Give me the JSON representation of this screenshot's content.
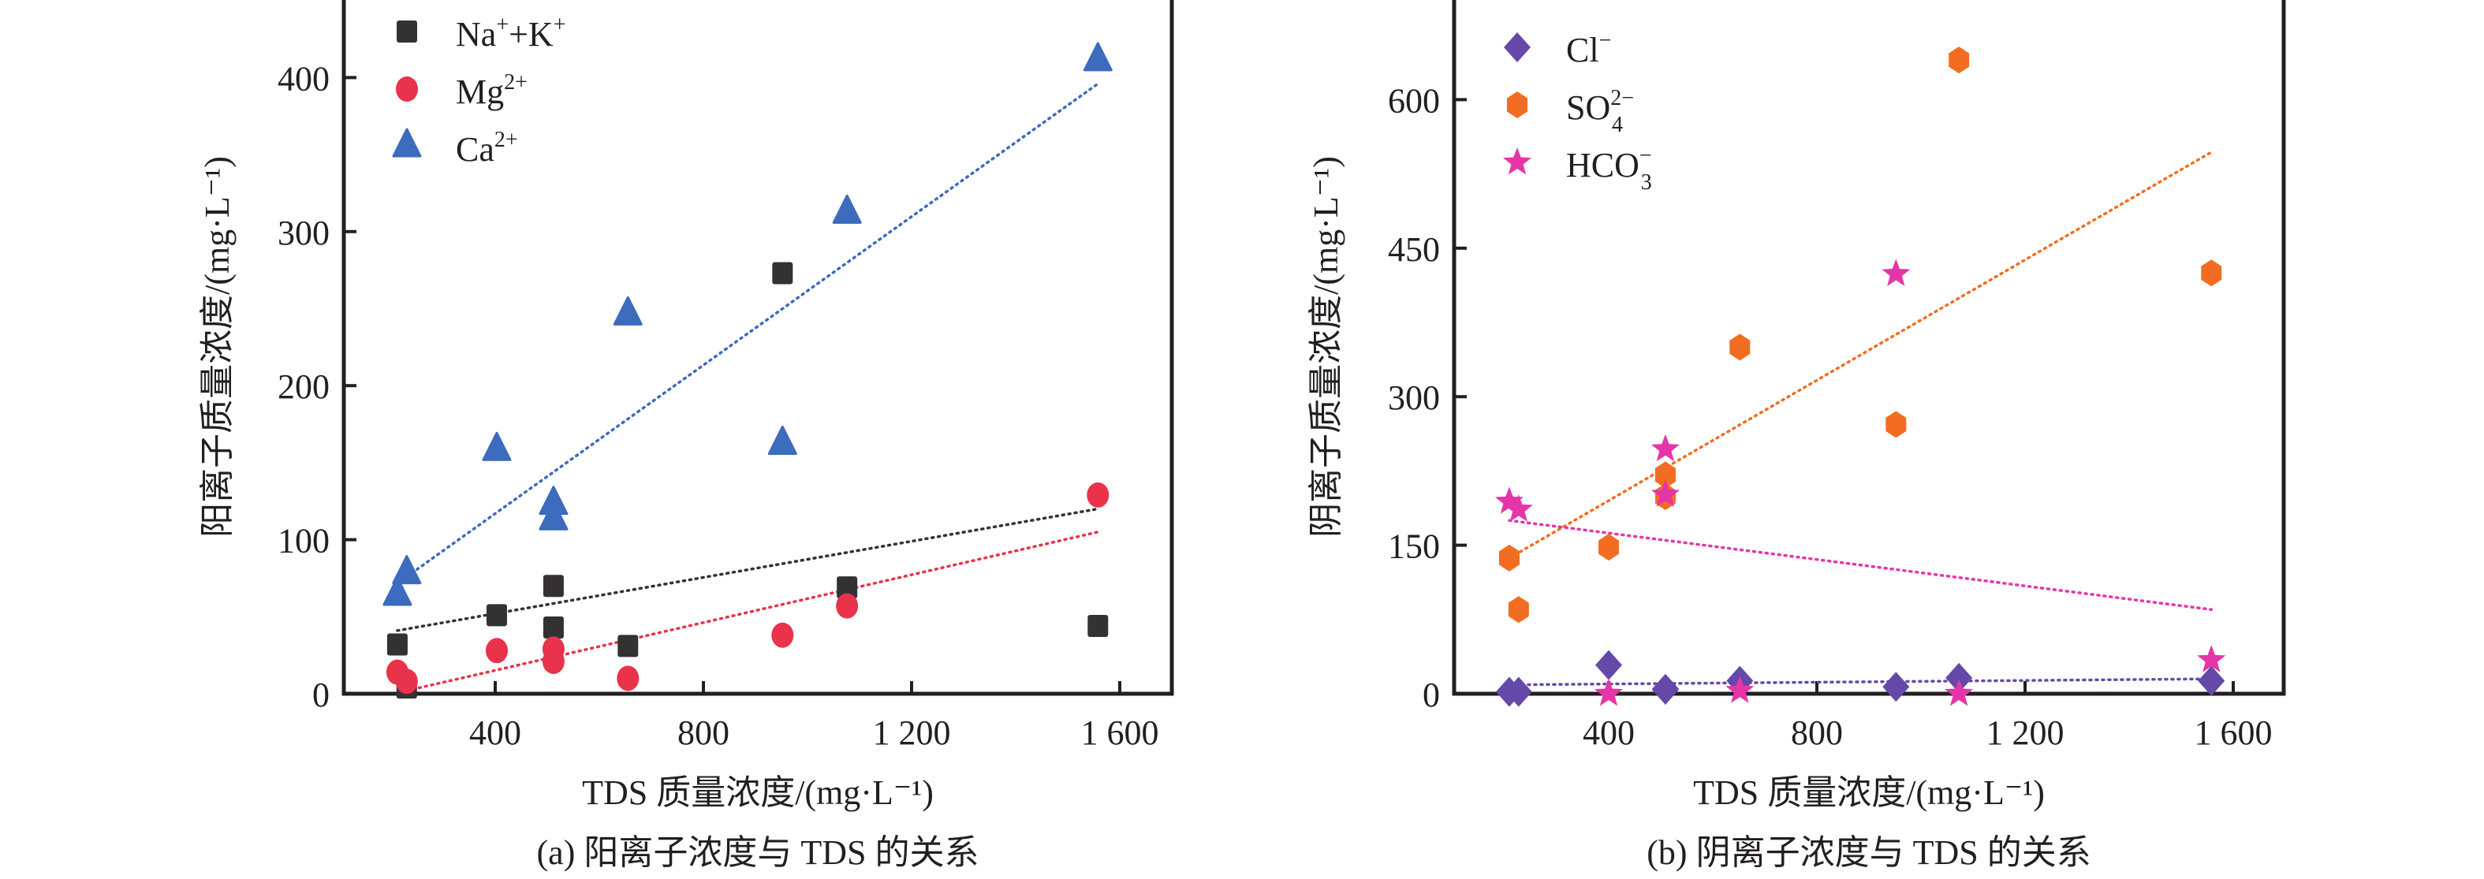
{
  "chart_data": [
    {
      "type": "scatter",
      "panel": "a",
      "caption": "(a) 阳离子浓度与 TDS 的关系",
      "xlabel": "TDS 质量浓度/(mg·L⁻¹)",
      "ylabel": "阳离子质量浓度/(mg·L⁻¹)",
      "xlim": [
        150,
        1700
      ],
      "ylim": [
        0,
        450
      ],
      "xticks": [
        400,
        800,
        1200,
        1600
      ],
      "xtick_labels": [
        "400",
        "800",
        "1 200",
        "1 600"
      ],
      "yticks": [
        0,
        100,
        200,
        300,
        400
      ],
      "ytick_labels": [
        "0",
        "100",
        "200",
        "300",
        "400"
      ],
      "legend_position": "top-left",
      "grid": false,
      "series": [
        {
          "name": "Na⁺+K⁺",
          "marker": "square",
          "color": "#333132",
          "x": [
            212,
            230,
            403,
            512,
            512,
            655,
            952,
            1076,
            1558
          ],
          "y": [
            32,
            4,
            51,
            70,
            43,
            31,
            273,
            69,
            44
          ],
          "trend": {
            "x": [
              212,
              1558
            ],
            "y": [
              41,
              120
            ]
          }
        },
        {
          "name": "Mg²⁺",
          "marker": "circle",
          "color": "#e8334a",
          "x": [
            212,
            230,
            403,
            512,
            512,
            655,
            952,
            1076,
            1558
          ],
          "y": [
            14,
            8,
            28,
            29,
            21,
            10,
            38,
            57,
            129
          ],
          "trend": {
            "x": [
              230,
              1558
            ],
            "y": [
              2,
              105
            ]
          }
        },
        {
          "name": "Ca²⁺",
          "marker": "triangle",
          "color": "#3d6bbd",
          "x": [
            212,
            230,
            403,
            512,
            512,
            655,
            952,
            1076,
            1558
          ],
          "y": [
            64,
            78,
            158,
            123,
            113,
            246,
            162,
            312,
            411
          ],
          "trend": {
            "x": [
              230,
              1558
            ],
            "y": [
              76,
              396
            ]
          }
        }
      ]
    },
    {
      "type": "scatter",
      "panel": "b",
      "caption": "(b) 阴离子浓度与 TDS 的关系",
      "xlabel": "TDS 质量浓度/(mg·L⁻¹)",
      "ylabel": "阴离子质量浓度/(mg·L⁻¹)",
      "xlim": [
        150,
        1700
      ],
      "ylim": [
        0,
        700
      ],
      "xticks": [
        400,
        800,
        1200,
        1600
      ],
      "xtick_labels": [
        "400",
        "800",
        "1 200",
        "1 600"
      ],
      "yticks": [
        0,
        150,
        300,
        450,
        600
      ],
      "ytick_labels": [
        "0",
        "150",
        "300",
        "450",
        "600"
      ],
      "legend_position": "top-left",
      "grid": false,
      "series": [
        {
          "name": "Cl⁻",
          "marker": "diamond",
          "color": "#6549a8",
          "x": [
            209,
            227,
            400,
            509,
            509,
            652,
            952,
            1073,
            1558
          ],
          "y": [
            2,
            2,
            29,
            5,
            4,
            13,
            7,
            16,
            13
          ],
          "trend": {
            "x": [
              209,
              1558
            ],
            "y": [
              9,
              15
            ]
          }
        },
        {
          "name": "SO₄²⁻",
          "marker": "hexagon",
          "color": "#f26d21",
          "x": [
            209,
            227,
            400,
            509,
            509,
            652,
            952,
            1073,
            1558
          ],
          "y": [
            137,
            85,
            148,
            221,
            199,
            350,
            272,
            640,
            425
          ],
          "trend": {
            "x": [
              209,
              1558
            ],
            "y": [
              137,
              547
            ]
          }
        },
        {
          "name": "HCO₃⁻",
          "marker": "star",
          "color": "#e535a8",
          "x": [
            209,
            227,
            400,
            509,
            509,
            652,
            952,
            1073,
            1558
          ],
          "y": [
            194,
            186,
            0,
            247,
            201,
            3,
            424,
            0,
            34
          ],
          "trend": {
            "x": [
              209,
              1558
            ],
            "y": [
              175,
              85
            ]
          }
        }
      ]
    }
  ],
  "legend_labels": {
    "a": [
      {
        "base": "Na",
        "sup": "+",
        "mid": "+K",
        "sup2": "+"
      },
      {
        "base": "Mg",
        "sup": "2+"
      },
      {
        "base": "Ca",
        "sup": "2+"
      }
    ],
    "b": [
      {
        "base": "Cl",
        "sup": "−"
      },
      {
        "base": "SO",
        "sup": "2−",
        "sub": "4"
      },
      {
        "base": "HCO",
        "sup": "−",
        "sub": "3"
      }
    ]
  }
}
